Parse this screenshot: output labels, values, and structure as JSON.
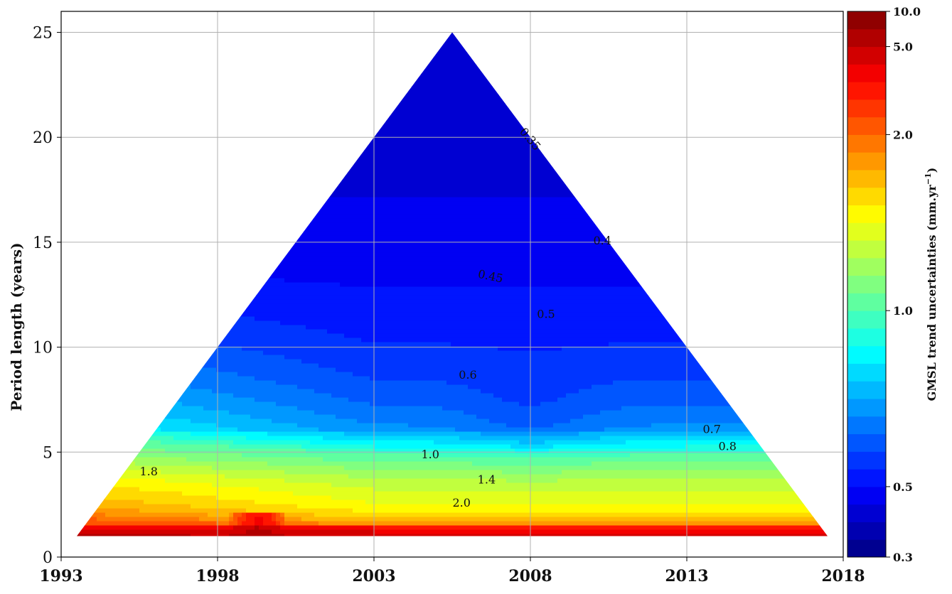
{
  "chart_data": {
    "type": "heatmap",
    "title": "",
    "xlabel": "",
    "ylabel": "Period length (years)",
    "xlim": [
      1993,
      2018
    ],
    "ylim": [
      0,
      26
    ],
    "x_ticks": [
      "1993",
      "1998",
      "2003",
      "2008",
      "2013",
      "2018"
    ],
    "y_ticks": [
      "0",
      "5",
      "10",
      "15",
      "20",
      "25"
    ],
    "grid": true,
    "domain": "triangle",
    "apex": {
      "x": 2005.5,
      "y": 25
    },
    "base": {
      "x0": 1993.5,
      "x1": 2017.5,
      "y": 1
    },
    "colorbar": {
      "label": "GMSL trend uncertainties (mm.yr",
      "label_exponent": "−1",
      "label_close": ")",
      "scale": "log",
      "range": [
        0.3,
        10.0
      ],
      "tick_labels": [
        "0.3",
        "0.5",
        "1.0",
        "2.0",
        "5.0",
        "10.0"
      ],
      "levels": [
        0.3,
        0.35,
        0.4,
        0.45,
        0.5,
        0.55,
        0.6,
        0.65,
        0.7,
        0.75,
        0.8,
        0.85,
        0.9,
        0.95,
        1.0,
        1.1,
        1.2,
        1.3,
        1.4,
        1.5,
        1.6,
        1.7,
        1.8,
        1.9,
        2.0,
        2.25,
        2.5,
        3.0,
        4.0,
        5.0,
        7.0,
        10.0
      ]
    },
    "contour_labels": [
      {
        "text": "0.35",
        "x": 2007.9,
        "y": 19.8,
        "rotate": 50
      },
      {
        "text": "0.4",
        "x": 2010.3,
        "y": 14.9,
        "rotate": 0
      },
      {
        "text": "0.45",
        "x": 2006.7,
        "y": 13.2,
        "rotate": 12
      },
      {
        "text": "0.5",
        "x": 2008.5,
        "y": 11.4,
        "rotate": 0
      },
      {
        "text": "0.6",
        "x": 2006.0,
        "y": 8.5,
        "rotate": 0
      },
      {
        "text": "0.7",
        "x": 2013.8,
        "y": 5.9,
        "rotate": 0
      },
      {
        "text": "0.8",
        "x": 2014.3,
        "y": 5.1,
        "rotate": 0
      },
      {
        "text": "1.0",
        "x": 2004.8,
        "y": 4.7,
        "rotate": 0
      },
      {
        "text": "1.4",
        "x": 2006.6,
        "y": 3.5,
        "rotate": 0
      },
      {
        "text": "2.0",
        "x": 2005.8,
        "y": 2.4,
        "rotate": 0
      },
      {
        "text": "1.8",
        "x": 1995.8,
        "y": 3.9,
        "rotate": 0
      }
    ]
  }
}
